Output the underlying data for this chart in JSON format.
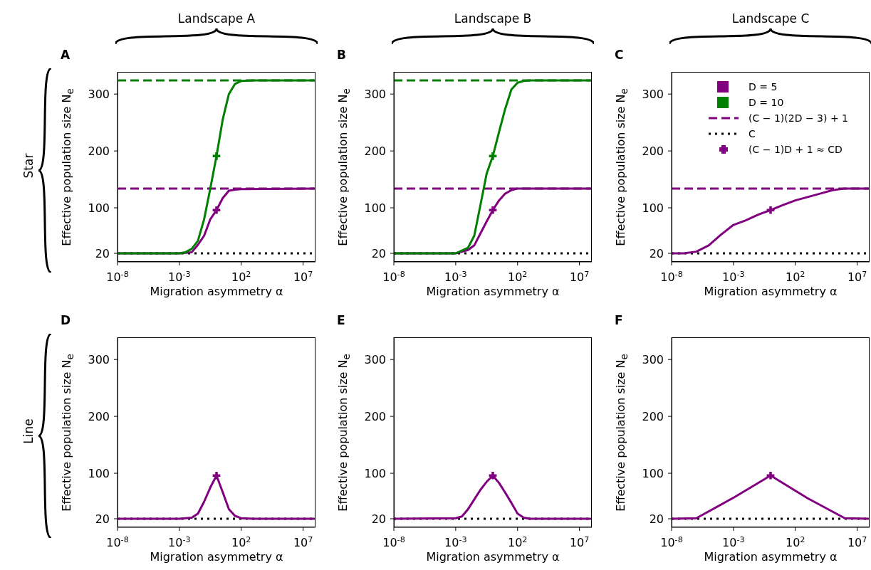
{
  "chart_data": [
    {
      "type": "line",
      "title": "A",
      "xlabel": "Migration asymmetry α",
      "ylabel": "Effective population size N$_{e}$",
      "log": "x",
      "xlim": [
        1e-08,
        100000000.0
      ],
      "ylim": [
        5,
        339
      ],
      "xticks": [
        {
          "value": 1e-08,
          "label": "10$^{-8}$"
        },
        {
          "value": 0.001,
          "label": "10$^{-3}$"
        },
        {
          "value": 100,
          "label": "10$^{2}$"
        },
        {
          "value": 10000000.0,
          "label": "10$^{7}$"
        }
      ],
      "yticks": [
        20,
        100,
        200,
        300
      ],
      "annotations": [
        "Landscape A",
        "Star"
      ],
      "series": [
        {
          "type": "line",
          "color": "#800080",
          "x": [
            1e-08,
            0.001,
            0.01,
            0.0316,
            0.1,
            0.316,
            1,
            3.16,
            10,
            31.6,
            100,
            100000000.0
          ],
          "values": [
            20,
            20,
            22,
            35,
            51,
            80,
            96,
            117,
            130,
            132,
            133,
            134
          ]
        },
        {
          "type": "line",
          "color": "#008000",
          "x": [
            1e-08,
            0.001,
            0.00316,
            0.01,
            0.0316,
            0.1,
            0.316,
            1,
            3.16,
            10,
            31.6,
            100,
            1000,
            100000000.0
          ],
          "values": [
            20,
            20,
            22,
            28,
            42,
            80,
            134,
            191,
            255,
            300,
            318,
            323,
            324,
            324
          ]
        },
        {
          "type": "scatter",
          "marker": "cross",
          "colors": [
            "#800080",
            "#008000"
          ],
          "x": [
            1,
            1
          ],
          "values": [
            96,
            191
          ]
        }
      ],
      "ref_lines": [
        {
          "axis": "y",
          "value": 134,
          "color": "#800080",
          "line_style": "dashed"
        },
        {
          "axis": "y",
          "value": 324,
          "color": "#008000",
          "line_style": "dashed"
        },
        {
          "axis": "y",
          "value": 20,
          "color": "#000000",
          "line_style": "dotted"
        }
      ]
    },
    {
      "type": "line",
      "title": "B",
      "xlabel": "Migration asymmetry α",
      "ylabel": "Effective population size N$_{e}$",
      "log": "x",
      "xlim": [
        1e-08,
        100000000.0
      ],
      "ylim": [
        5,
        339
      ],
      "xticks": [
        {
          "value": 1e-08,
          "label": "10$^{-8}$"
        },
        {
          "value": 0.001,
          "label": "10$^{-3}$"
        },
        {
          "value": 100,
          "label": "10$^{2}$"
        },
        {
          "value": 10000000.0,
          "label": "10$^{7}$"
        }
      ],
      "yticks": [
        20,
        100,
        200,
        300
      ],
      "annotations": [
        "Landscape B"
      ],
      "series": [
        {
          "type": "line",
          "color": "#800080",
          "x": [
            1e-08,
            0.001,
            0.01,
            0.0316,
            0.1,
            0.316,
            1,
            3.16,
            10,
            31.6,
            100,
            100000000.0
          ],
          "values": [
            20,
            20,
            26,
            34,
            55,
            76,
            96,
            113,
            125,
            131,
            134,
            134
          ]
        },
        {
          "type": "line",
          "color": "#008000",
          "x": [
            1e-08,
            0.001,
            0.01,
            0.0316,
            0.1,
            0.316,
            1,
            3.16,
            10,
            31.6,
            100,
            316,
            1000,
            100000000.0
          ],
          "values": [
            20,
            20,
            30,
            51,
            105,
            160,
            191,
            233,
            274,
            308,
            320,
            323,
            324,
            324
          ]
        },
        {
          "type": "scatter",
          "marker": "cross",
          "colors": [
            "#800080",
            "#008000"
          ],
          "x": [
            1,
            1
          ],
          "values": [
            96,
            191
          ]
        }
      ],
      "ref_lines": [
        {
          "axis": "y",
          "value": 134,
          "color": "#800080",
          "line_style": "dashed"
        },
        {
          "axis": "y",
          "value": 324,
          "color": "#008000",
          "line_style": "dashed"
        },
        {
          "axis": "y",
          "value": 20,
          "color": "#000000",
          "line_style": "dotted"
        }
      ]
    },
    {
      "type": "line",
      "title": "C",
      "xlabel": "Migration asymmetry α",
      "ylabel": "Effective population size N$_{e}$",
      "log": "x",
      "xlim": [
        1e-08,
        100000000.0
      ],
      "ylim": [
        5,
        339
      ],
      "xticks": [
        {
          "value": 1e-08,
          "label": "10$^{-8}$"
        },
        {
          "value": 0.001,
          "label": "10$^{-3}$"
        },
        {
          "value": 100,
          "label": "10$^{2}$"
        },
        {
          "value": 10000000.0,
          "label": "10$^{7}$"
        }
      ],
      "yticks": [
        20,
        100,
        200,
        300
      ],
      "annotations": [
        "Landscape C"
      ],
      "legend": "top right",
      "series": [
        {
          "type": "line",
          "name": "D = 5",
          "color": "#800080",
          "x": [
            1e-08,
            1e-07,
            1e-06,
            1e-05,
            0.0001,
            0.001,
            0.01,
            0.1,
            1,
            10,
            100,
            1000,
            10000.0,
            100000.0,
            1000000.0,
            100000000.0
          ],
          "values": [
            20,
            20,
            23,
            34,
            53,
            70,
            78,
            88,
            96,
            105,
            113,
            119,
            125,
            131,
            134,
            134
          ]
        },
        {
          "type": "line",
          "name": "D = 10",
          "color": "#008000"
        },
        {
          "type": "scatter",
          "name": "(C − 1)D + 1 ≈ CD",
          "marker": "cross",
          "color": "#800080",
          "x": [
            1
          ],
          "values": [
            96
          ]
        }
      ],
      "ref_lines": [
        {
          "axis": "y",
          "value": 134,
          "color": "#800080",
          "line_style": "dashed",
          "label": "(C − 1)(2D − 3) + 1"
        },
        {
          "axis": "y",
          "value": 20,
          "color": "#000000",
          "line_style": "dotted",
          "label": "C"
        }
      ]
    },
    {
      "type": "line",
      "title": "D",
      "xlabel": "Migration asymmetry α",
      "ylabel": "Effective population size N$_{e}$",
      "log": "x",
      "xlim": [
        1e-08,
        100000000.0
      ],
      "ylim": [
        5,
        339
      ],
      "xticks": [
        {
          "value": 1e-08,
          "label": "10$^{-8}$"
        },
        {
          "value": 0.001,
          "label": "10$^{-3}$"
        },
        {
          "value": 100,
          "label": "10$^{2}$"
        },
        {
          "value": 10000000.0,
          "label": "10$^{7}$"
        }
      ],
      "yticks": [
        20,
        100,
        200,
        300
      ],
      "annotations": [
        "Line"
      ],
      "series": [
        {
          "type": "line",
          "color": "#800080",
          "x": [
            1e-08,
            0.001,
            0.01,
            0.0316,
            0.1,
            0.316,
            1,
            3.16,
            10,
            31.6,
            100,
            1000,
            100000000.0
          ],
          "values": [
            20,
            20,
            22,
            29,
            50,
            75,
            96,
            67,
            37,
            25,
            21,
            20,
            20
          ]
        },
        {
          "type": "scatter",
          "marker": "cross",
          "colors": [
            "#800080"
          ],
          "x": [
            1
          ],
          "values": [
            96
          ]
        }
      ],
      "ref_lines": [
        {
          "axis": "y",
          "value": 20,
          "color": "#000000",
          "line_style": "dotted"
        }
      ]
    },
    {
      "type": "line",
      "title": "E",
      "xlabel": "Migration asymmetry α",
      "ylabel": "Effective population size N$_{e}$",
      "log": "x",
      "xlim": [
        1e-08,
        100000000.0
      ],
      "ylim": [
        5,
        339
      ],
      "xticks": [
        {
          "value": 1e-08,
          "label": "10$^{-8}$"
        },
        {
          "value": 0.001,
          "label": "10$^{-3}$"
        },
        {
          "value": 100,
          "label": "10$^{2}$"
        },
        {
          "value": 10000000.0,
          "label": "10$^{7}$"
        }
      ],
      "yticks": [
        20,
        100,
        200,
        300
      ],
      "series": [
        {
          "type": "line",
          "color": "#800080",
          "x": [
            1e-08,
            0.001,
            0.00316,
            0.01,
            0.0316,
            0.1,
            0.316,
            1,
            3.16,
            10,
            31.6,
            100,
            316,
            1000,
            100000000.0
          ],
          "values": [
            20,
            21,
            24,
            37,
            54,
            71,
            85,
            96,
            83,
            66,
            48,
            29,
            22,
            20,
            20
          ]
        },
        {
          "type": "scatter",
          "marker": "cross",
          "colors": [
            "#800080"
          ],
          "x": [
            1
          ],
          "values": [
            96
          ]
        }
      ],
      "ref_lines": [
        {
          "axis": "y",
          "value": 20,
          "color": "#000000",
          "line_style": "dotted"
        }
      ]
    },
    {
      "type": "line",
      "title": "F",
      "xlabel": "Migration asymmetry α",
      "ylabel": "Effective population size N$_{e}$",
      "log": "x",
      "xlim": [
        1e-08,
        100000000.0
      ],
      "ylim": [
        5,
        339
      ],
      "xticks": [
        {
          "value": 1e-08,
          "label": "10$^{-8}$"
        },
        {
          "value": 0.001,
          "label": "10$^{-3}$"
        },
        {
          "value": 100,
          "label": "10$^{2}$"
        },
        {
          "value": 10000000.0,
          "label": "10$^{7}$"
        }
      ],
      "yticks": [
        20,
        100,
        200,
        300
      ],
      "series": [
        {
          "type": "line",
          "color": "#800080",
          "x": [
            1e-08,
            1e-06,
            0.001,
            1,
            1000,
            1000000.0,
            100000000.0
          ],
          "values": [
            20,
            21,
            57,
            96,
            56,
            21,
            20
          ]
        },
        {
          "type": "scatter",
          "marker": "cross",
          "colors": [
            "#800080"
          ],
          "x": [
            1
          ],
          "values": [
            96
          ]
        }
      ],
      "ref_lines": [
        {
          "axis": "y",
          "value": 20,
          "color": "#000000",
          "line_style": "dotted"
        }
      ]
    }
  ]
}
